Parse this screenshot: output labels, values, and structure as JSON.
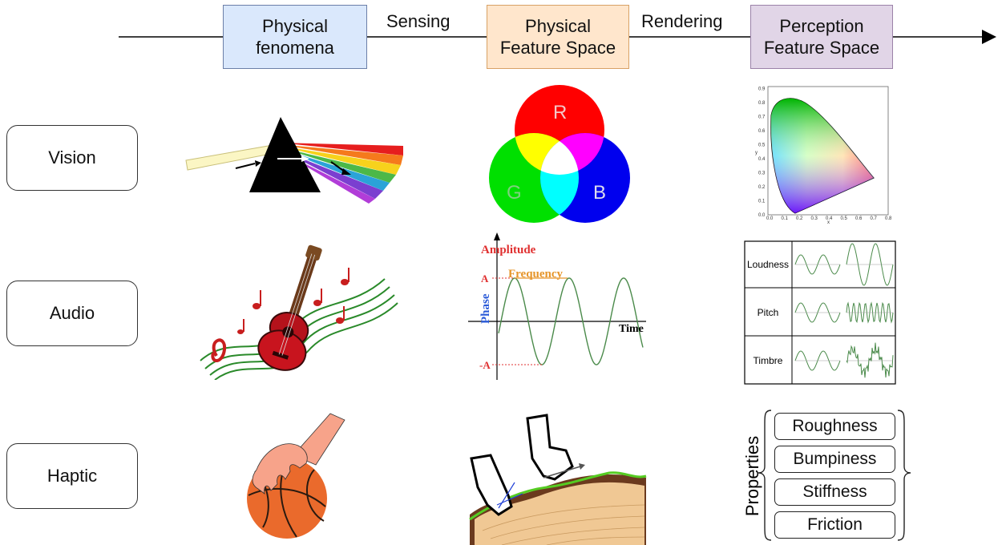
{
  "stages": [
    {
      "id": "physical",
      "label": "Physical\nfenomena",
      "color": "#dae8fc"
    },
    {
      "id": "feature",
      "label": "Physical\nFeature Space",
      "color": "#ffe6cc"
    },
    {
      "id": "perception",
      "label": "Perception\nFeature Space",
      "color": "#e1d5e7"
    }
  ],
  "connectors": {
    "sensing": "Sensing",
    "rendering": "Rendering"
  },
  "modalities": [
    "Vision",
    "Audio",
    "Haptic"
  ],
  "rgb": {
    "r": "R",
    "g": "G",
    "b": "B"
  },
  "wave": {
    "amplitude": "Amplitude",
    "frequency": "Frequency",
    "phase": "Phase",
    "time": "Time",
    "a": "A",
    "neg_a": "-A"
  },
  "audio_table": {
    "rows": [
      "Loudness",
      "Pitch",
      "Timbre"
    ]
  },
  "haptic": {
    "properties_label": "Properties",
    "items": [
      "Roughness",
      "Bumpiness",
      "Stiffness",
      "Friction"
    ]
  },
  "cie": {
    "x_ticks": [
      "0.0",
      "0.1",
      "0.2",
      "0.3",
      "0.4",
      "0.5",
      "0.6",
      "0.7",
      "0.8"
    ],
    "y_ticks": [
      "0.0",
      "0.1",
      "0.2",
      "0.3",
      "0.4",
      "0.5",
      "0.6",
      "0.7",
      "0.8",
      "0.9"
    ],
    "xlabel": "x",
    "ylabel": "y"
  }
}
